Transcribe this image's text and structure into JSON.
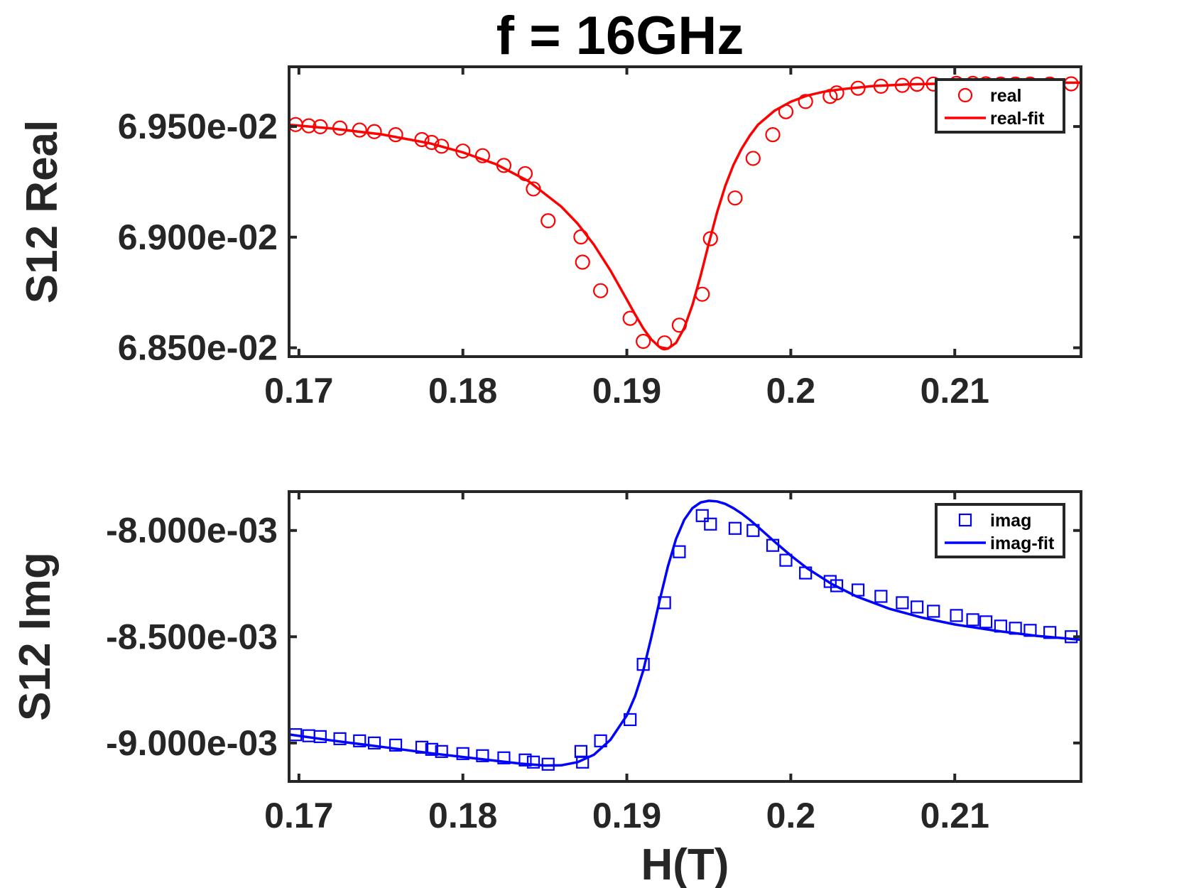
{
  "figure_title": "f = 16GHz",
  "colors": {
    "real": "#ff0000",
    "imag": "#0000ff",
    "axis": "#262626",
    "title": "#000000"
  },
  "chart_data": [
    {
      "type": "scatter",
      "xlabel": "",
      "ylabel": "S12 Real",
      "xlim": [
        0.1694,
        0.2177
      ],
      "ylim": [
        0.06846,
        0.06977
      ],
      "x_ticks": [
        0.17,
        0.18,
        0.19,
        0.2,
        0.21
      ],
      "x_tick_labels": [
        "0.17",
        "0.18",
        "0.19",
        "0.2",
        "0.21"
      ],
      "y_ticks": [
        0.0685,
        0.069,
        0.0695
      ],
      "y_tick_labels": [
        "6.850e-02",
        "6.900e-02",
        "6.950e-02"
      ],
      "legend": {
        "position": "top-right",
        "entries": [
          "real",
          "real-fit"
        ]
      },
      "series": [
        {
          "name": "real",
          "marker": "circle",
          "color": "#ff0000",
          "x": [
            0.1698,
            0.1706,
            0.1713,
            0.1725,
            0.1737,
            0.1746,
            0.1759,
            0.1775,
            0.1781,
            0.1787,
            0.18,
            0.1812,
            0.1825,
            0.1838,
            0.1843,
            0.1852,
            0.1872,
            0.1873,
            0.1884,
            0.1902,
            0.191,
            0.1923,
            0.1932,
            0.1946,
            0.1951,
            0.1966,
            0.1977,
            0.1989,
            0.1997,
            0.2009,
            0.2024,
            0.2028,
            0.2041,
            0.2055,
            0.2068,
            0.2077,
            0.2087,
            0.2101,
            0.2111,
            0.2119,
            0.2128,
            0.2137,
            0.2146,
            0.2158,
            0.2171
          ],
          "y": [
            0.069509,
            0.069503,
            0.069499,
            0.069493,
            0.069484,
            0.069477,
            0.069463,
            0.069441,
            0.069428,
            0.069411,
            0.069389,
            0.069368,
            0.069324,
            0.069287,
            0.069218,
            0.069074,
            0.069001,
            0.068887,
            0.068758,
            0.068633,
            0.068529,
            0.068522,
            0.068602,
            0.068742,
            0.068993,
            0.069177,
            0.069356,
            0.069463,
            0.069567,
            0.069613,
            0.069636,
            0.069652,
            0.069673,
            0.069682,
            0.069686,
            0.069691,
            0.069692,
            0.069695,
            0.069695,
            0.069693,
            0.069692,
            0.069692,
            0.069692,
            0.069692,
            0.069693
          ]
        },
        {
          "name": "real-fit",
          "line": true,
          "color": "#ff0000",
          "x": [
            0.1694,
            0.172,
            0.175,
            0.178,
            0.18,
            0.182,
            0.184,
            0.186,
            0.187,
            0.188,
            0.189,
            0.19,
            0.1905,
            0.191,
            0.1915,
            0.192,
            0.1925,
            0.193,
            0.1935,
            0.194,
            0.1945,
            0.195,
            0.1955,
            0.196,
            0.1965,
            0.197,
            0.1975,
            0.198,
            0.199,
            0.2,
            0.201,
            0.202,
            0.203,
            0.205,
            0.207,
            0.21,
            0.213,
            0.2177
          ],
          "y": [
            0.069508,
            0.069491,
            0.069465,
            0.069424,
            0.069383,
            0.06933,
            0.069253,
            0.069138,
            0.069061,
            0.068965,
            0.068849,
            0.068718,
            0.068651,
            0.068588,
            0.068537,
            0.068503,
            0.068496,
            0.068522,
            0.068589,
            0.068693,
            0.068825,
            0.068972,
            0.069111,
            0.069231,
            0.069326,
            0.069399,
            0.069459,
            0.069508,
            0.069571,
            0.069612,
            0.06964,
            0.069657,
            0.069668,
            0.069683,
            0.06969,
            0.069695,
            0.069697,
            0.069698
          ]
        }
      ]
    },
    {
      "type": "scatter",
      "xlabel": "H(T)",
      "ylabel": "S12 Img",
      "xlim": [
        0.1694,
        0.2177
      ],
      "ylim": [
        -0.009181,
        -0.007817
      ],
      "x_ticks": [
        0.17,
        0.18,
        0.19,
        0.2,
        0.21
      ],
      "x_tick_labels": [
        "0.17",
        "0.18",
        "0.19",
        "0.2",
        "0.21"
      ],
      "y_ticks": [
        -0.009,
        -0.0085,
        -0.008
      ],
      "y_tick_labels": [
        "-9.000e-03",
        "-8.500e-03",
        "-8.000e-03"
      ],
      "legend": {
        "position": "top-right",
        "entries": [
          "imag",
          "imag-fit"
        ]
      },
      "series": [
        {
          "name": "imag",
          "marker": "square",
          "color": "#0000ff",
          "x": [
            0.1698,
            0.1706,
            0.1713,
            0.1725,
            0.1737,
            0.1746,
            0.1759,
            0.1775,
            0.1781,
            0.1787,
            0.18,
            0.1812,
            0.1825,
            0.1838,
            0.1843,
            0.1852,
            0.1872,
            0.1873,
            0.1884,
            0.1902,
            0.191,
            0.1923,
            0.1932,
            0.1946,
            0.1951,
            0.1966,
            0.1977,
            0.1989,
            0.1997,
            0.2009,
            0.2024,
            0.2028,
            0.2041,
            0.2055,
            0.2068,
            0.2077,
            0.2087,
            0.2101,
            0.2111,
            0.2119,
            0.2128,
            0.2137,
            0.2146,
            0.2158,
            0.2171
          ],
          "y": [
            -0.008961,
            -0.008966,
            -0.00897,
            -0.00898,
            -0.00899,
            -0.009,
            -0.00901,
            -0.00902,
            -0.00903,
            -0.00904,
            -0.00905,
            -0.00906,
            -0.00907,
            -0.00908,
            -0.00909,
            -0.0091,
            -0.00904,
            -0.00909,
            -0.00899,
            -0.00889,
            -0.00863,
            -0.00834,
            -0.0081,
            -0.00793,
            -0.00797,
            -0.00799,
            -0.008,
            -0.00807,
            -0.00814,
            -0.0082,
            -0.00824,
            -0.00826,
            -0.00828,
            -0.00831,
            -0.00834,
            -0.00836,
            -0.00838,
            -0.0084,
            -0.00842,
            -0.00843,
            -0.00845,
            -0.00846,
            -0.00847,
            -0.00848,
            -0.0085
          ],
          "note_y_order": "sorted by x"
        },
        {
          "name": "imag-fit",
          "line": true,
          "color": "#0000ff",
          "x": [
            0.1694,
            0.172,
            0.175,
            0.178,
            0.181,
            0.1835,
            0.185,
            0.186,
            0.187,
            0.188,
            0.189,
            0.19,
            0.1905,
            0.191,
            0.1915,
            0.192,
            0.1925,
            0.193,
            0.1935,
            0.194,
            0.1945,
            0.195,
            0.1955,
            0.196,
            0.1965,
            0.197,
            0.1975,
            0.198,
            0.199,
            0.2,
            0.201,
            0.2025,
            0.204,
            0.206,
            0.208,
            0.21,
            0.2125,
            0.215,
            0.2177
          ],
          "y": [
            -0.00896,
            -0.008988,
            -0.009018,
            -0.009048,
            -0.009075,
            -0.009097,
            -0.009106,
            -0.009105,
            -0.00909,
            -0.009055,
            -0.008985,
            -0.00887,
            -0.00878,
            -0.00866,
            -0.0085,
            -0.00833,
            -0.00817,
            -0.00804,
            -0.00795,
            -0.007895,
            -0.007868,
            -0.00786,
            -0.007863,
            -0.007875,
            -0.007895,
            -0.00792,
            -0.00795,
            -0.007983,
            -0.008052,
            -0.008118,
            -0.008178,
            -0.008252,
            -0.00831,
            -0.008368,
            -0.00841,
            -0.008442,
            -0.008472,
            -0.008496,
            -0.008514
          ]
        }
      ]
    }
  ]
}
